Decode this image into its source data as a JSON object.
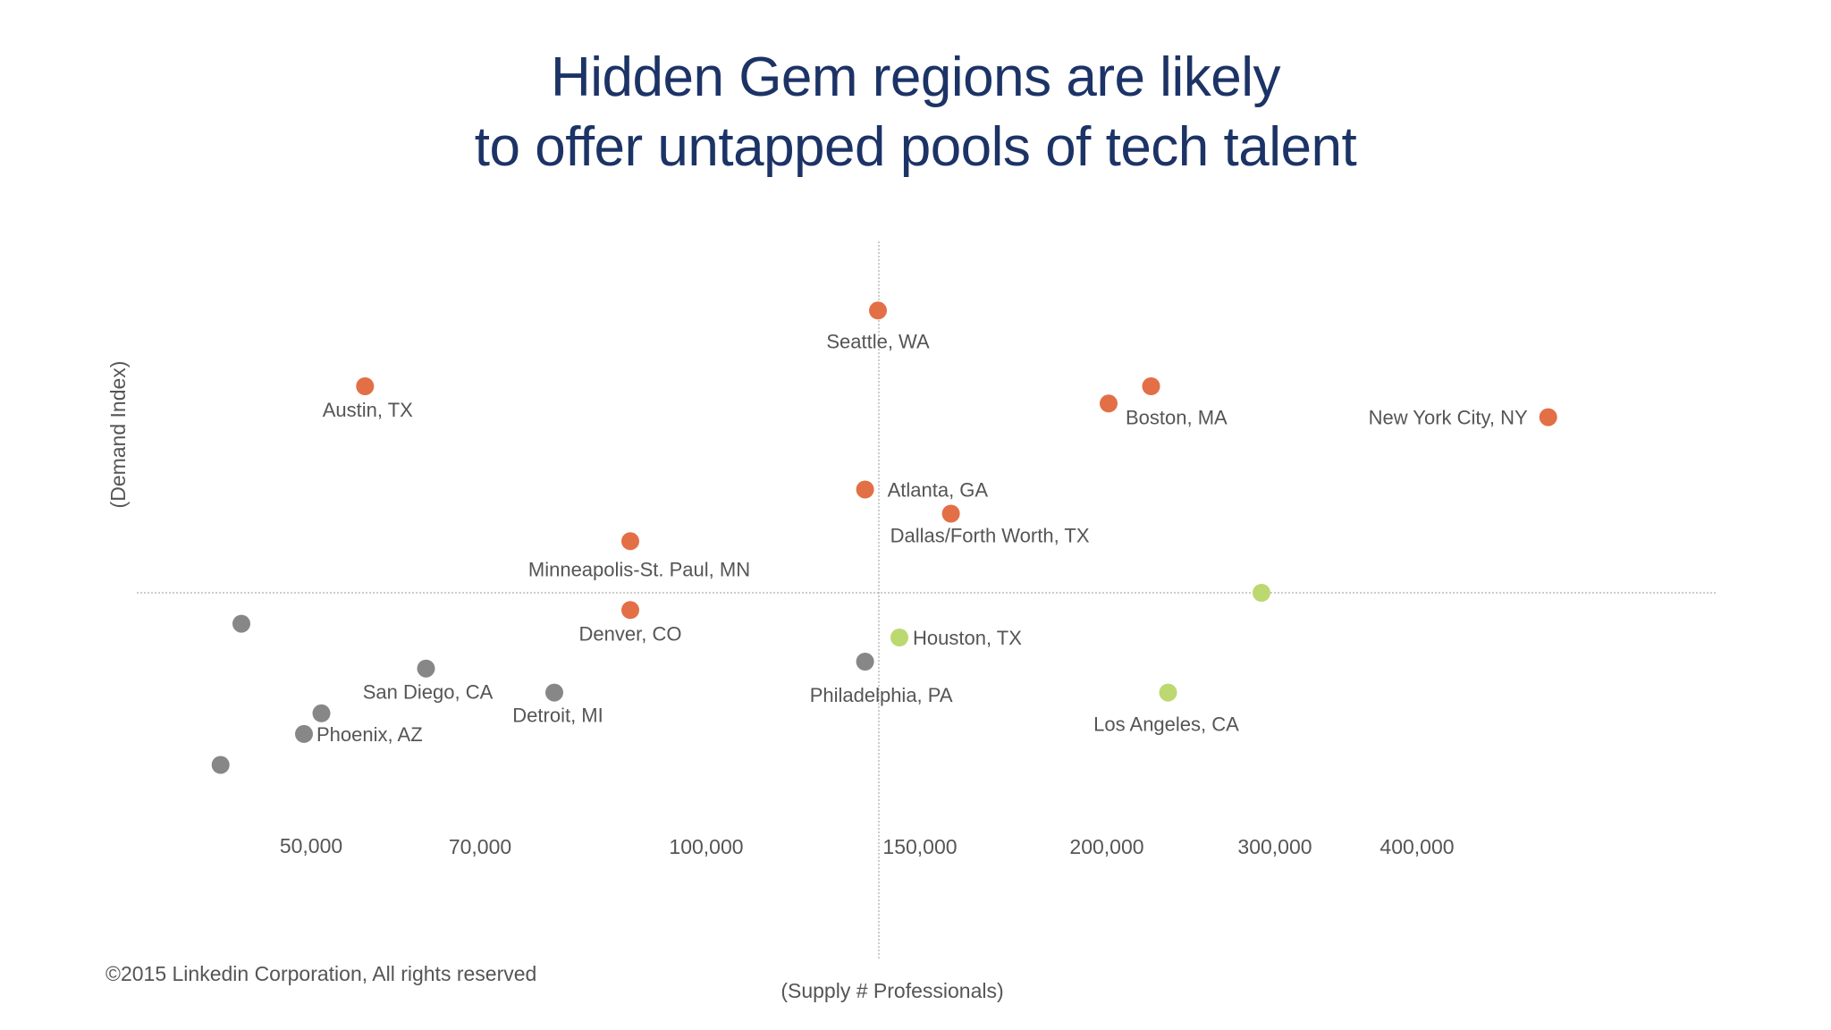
{
  "title": {
    "line1": "Hidden Gem regions are likely",
    "line2": "to offer untapped pools of tech talent"
  },
  "copyright": "©2015 Linkedin Corporation, All rights reserved",
  "colors": {
    "orange": "#e36f46",
    "green": "#bcd870",
    "gray": "#878787",
    "title": "#1c3366",
    "text": "#555555",
    "axis": "#9a9a9a"
  },
  "chart_data": {
    "type": "scatter",
    "title": "Hidden Gem regions are likely to offer untapped pools of tech talent",
    "xlabel": "(Supply # Professionals)",
    "ylabel": "(Demand Index)",
    "x_scale": "categorical-nonlinear",
    "x_ticks": [
      "50,000",
      "70,000",
      "100,000",
      "150,000",
      "200,000",
      "300,000",
      "400,000"
    ],
    "ylim": [
      -1,
      1
    ],
    "grid": false,
    "legend": "none",
    "points": [
      {
        "label": "Seattle, WA",
        "x": 140000,
        "y": 0.82,
        "group": "orange"
      },
      {
        "label": "Austin, TX",
        "x": 57000,
        "y": 0.6,
        "group": "orange"
      },
      {
        "label": "Boston, MA",
        "x": 200000,
        "y": 0.55,
        "group": "orange"
      },
      {
        "label": "",
        "x": 225000,
        "y": 0.6,
        "group": "orange"
      },
      {
        "label": "New York City, NY",
        "x": 500000,
        "y": 0.51,
        "group": "orange"
      },
      {
        "label": "Atlanta, GA",
        "x": 137000,
        "y": 0.3,
        "group": "orange"
      },
      {
        "label": "Dallas/Forth Worth, TX",
        "x": 158000,
        "y": 0.23,
        "group": "orange"
      },
      {
        "label": "Minneapolis-St. Paul, MN",
        "x": 90000,
        "y": 0.15,
        "group": "orange"
      },
      {
        "label": "Denver, CO",
        "x": 90000,
        "y": -0.05,
        "group": "orange"
      },
      {
        "label": "",
        "x": 290000,
        "y": 0.0,
        "group": "green"
      },
      {
        "label": "Houston, TX",
        "x": 145000,
        "y": -0.13,
        "group": "green"
      },
      {
        "label": "Los Angeles, CA",
        "x": 235000,
        "y": -0.29,
        "group": "green"
      },
      {
        "label": "Philadelphia, PA",
        "x": 137000,
        "y": -0.2,
        "group": "gray"
      },
      {
        "label": "",
        "x": 44000,
        "y": -0.09,
        "group": "gray"
      },
      {
        "label": "San Diego, CA",
        "x": 64000,
        "y": -0.22,
        "group": "gray"
      },
      {
        "label": "Detroit, MI",
        "x": 80000,
        "y": -0.29,
        "group": "gray"
      },
      {
        "label": "",
        "x": 52000,
        "y": -0.35,
        "group": "gray"
      },
      {
        "label": "Phoenix, AZ",
        "x": 50000,
        "y": -0.41,
        "group": "gray"
      },
      {
        "label": "",
        "x": 42000,
        "y": -0.5,
        "group": "gray"
      }
    ]
  }
}
